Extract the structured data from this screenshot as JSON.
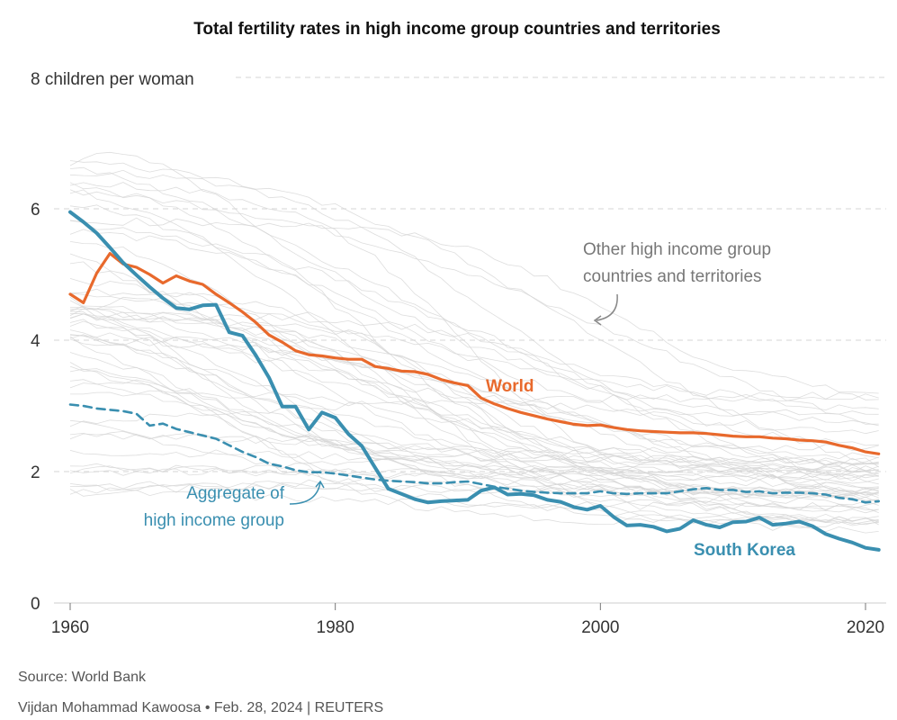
{
  "chart_data": {
    "type": "line",
    "title": "Total fertility rates in high income group countries and territories",
    "y_unit_label": "8 children per woman",
    "ylim": [
      0,
      8
    ],
    "xlim": [
      1960,
      2021
    ],
    "y_ticks": [
      "0",
      "2",
      "4",
      "6"
    ],
    "x_ticks": [
      "1960",
      "1980",
      "2000",
      "2020"
    ],
    "grid": "horizontal dashed",
    "annotations": {
      "world": "World",
      "south_korea": "South Korea",
      "aggregate_line1": "Aggregate of",
      "aggregate_line2": "high income group",
      "other_line1": "Other high income group",
      "other_line2": "countries and territories"
    },
    "colors": {
      "world": "#e8692c",
      "south_korea": "#3a8fb0",
      "aggregate": "#3a8fb0",
      "other": "#d4d4d4"
    },
    "x": [
      1960,
      1961,
      1962,
      1963,
      1964,
      1965,
      1966,
      1967,
      1968,
      1969,
      1970,
      1971,
      1972,
      1973,
      1974,
      1975,
      1976,
      1977,
      1978,
      1979,
      1980,
      1981,
      1982,
      1983,
      1984,
      1985,
      1986,
      1987,
      1988,
      1989,
      1990,
      1991,
      1992,
      1993,
      1994,
      1995,
      1996,
      1997,
      1998,
      1999,
      2000,
      2001,
      2002,
      2003,
      2004,
      2005,
      2006,
      2007,
      2008,
      2009,
      2010,
      2011,
      2012,
      2013,
      2014,
      2015,
      2016,
      2017,
      2018,
      2019,
      2020,
      2021
    ],
    "series": [
      {
        "name": "World",
        "key": "world",
        "values": [
          4.7,
          4.57,
          5.02,
          5.32,
          5.16,
          5.11,
          5.0,
          4.87,
          4.98,
          4.9,
          4.85,
          4.7,
          4.57,
          4.43,
          4.27,
          4.08,
          3.97,
          3.84,
          3.78,
          3.76,
          3.73,
          3.71,
          3.71,
          3.6,
          3.57,
          3.53,
          3.52,
          3.48,
          3.4,
          3.35,
          3.31,
          3.12,
          3.03,
          2.96,
          2.9,
          2.85,
          2.8,
          2.76,
          2.72,
          2.7,
          2.71,
          2.67,
          2.64,
          2.62,
          2.61,
          2.6,
          2.59,
          2.59,
          2.58,
          2.56,
          2.54,
          2.53,
          2.53,
          2.51,
          2.5,
          2.48,
          2.47,
          2.45,
          2.4,
          2.36,
          2.3,
          2.27
        ]
      },
      {
        "name": "South Korea",
        "key": "south_korea",
        "values": [
          5.95,
          5.8,
          5.63,
          5.41,
          5.18,
          4.99,
          4.81,
          4.64,
          4.49,
          4.47,
          4.53,
          4.54,
          4.12,
          4.07,
          3.77,
          3.43,
          2.99,
          2.99,
          2.64,
          2.9,
          2.82,
          2.57,
          2.39,
          2.06,
          1.74,
          1.66,
          1.58,
          1.53,
          1.55,
          1.56,
          1.57,
          1.71,
          1.76,
          1.65,
          1.66,
          1.64,
          1.57,
          1.54,
          1.46,
          1.42,
          1.48,
          1.31,
          1.18,
          1.19,
          1.16,
          1.09,
          1.13,
          1.26,
          1.19,
          1.15,
          1.23,
          1.24,
          1.3,
          1.19,
          1.21,
          1.24,
          1.17,
          1.05,
          0.98,
          0.92,
          0.84,
          0.81
        ]
      },
      {
        "name": "Aggregate of high income group",
        "key": "aggregate",
        "values": [
          3.02,
          3.0,
          2.96,
          2.94,
          2.92,
          2.88,
          2.7,
          2.73,
          2.65,
          2.6,
          2.55,
          2.5,
          2.4,
          2.3,
          2.22,
          2.12,
          2.08,
          2.02,
          1.99,
          1.99,
          1.97,
          1.94,
          1.91,
          1.88,
          1.86,
          1.85,
          1.84,
          1.82,
          1.82,
          1.84,
          1.85,
          1.81,
          1.77,
          1.74,
          1.71,
          1.69,
          1.68,
          1.67,
          1.67,
          1.67,
          1.7,
          1.67,
          1.66,
          1.67,
          1.67,
          1.67,
          1.7,
          1.73,
          1.75,
          1.72,
          1.72,
          1.69,
          1.7,
          1.67,
          1.68,
          1.68,
          1.67,
          1.65,
          1.6,
          1.58,
          1.53,
          1.55
        ]
      }
    ]
  },
  "footer": {
    "source": "Source: World Bank",
    "credit": "Vijdan Mohammad Kawoosa • Feb. 28, 2024 | REUTERS"
  }
}
